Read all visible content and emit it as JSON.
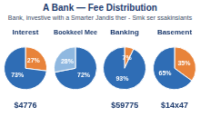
{
  "chart_data": [
    {
      "type": "pie",
      "title": "A Bank — Fee Distribution",
      "subtitle": "Bank, investive with a Smarter Jandis ther - Smk ser ssakinsiants",
      "categories": [
        "Interest",
        null
      ],
      "values": [
        27,
        73
      ],
      "value_labels": [
        "27%",
        "73%"
      ],
      "data_labels": true,
      "colors": [
        "#e8833a",
        "#2f6db5"
      ],
      "annotations": [
        "Interest",
        "$4776"
      ]
    },
    {
      "type": "pie",
      "categories": [
        "Bookkeel Mee",
        null
      ],
      "values": [
        72,
        28
      ],
      "value_labels": [
        "72%",
        "28%"
      ],
      "data_labels": true,
      "colors": [
        "#2f6db5",
        "#8fb8e0"
      ],
      "annotations": [
        "Bookkeel Mee"
      ]
    },
    {
      "type": "pie",
      "categories": [
        "Banking",
        null
      ],
      "values": [
        7,
        93
      ],
      "value_labels": [
        "7%",
        "93%"
      ],
      "data_labels": true,
      "colors": [
        "#e8833a",
        "#2f6db5"
      ],
      "annotations": [
        "Banking",
        "$59775"
      ]
    },
    {
      "type": "pie",
      "categories": [
        "Basement",
        null
      ],
      "values": [
        35,
        65
      ],
      "value_labels": [
        "35%",
        "65%"
      ],
      "data_labels": true,
      "colors": [
        "#e8833a",
        "#2f6db5"
      ],
      "annotations": [
        "Basement",
        "$14x47"
      ]
    }
  ]
}
